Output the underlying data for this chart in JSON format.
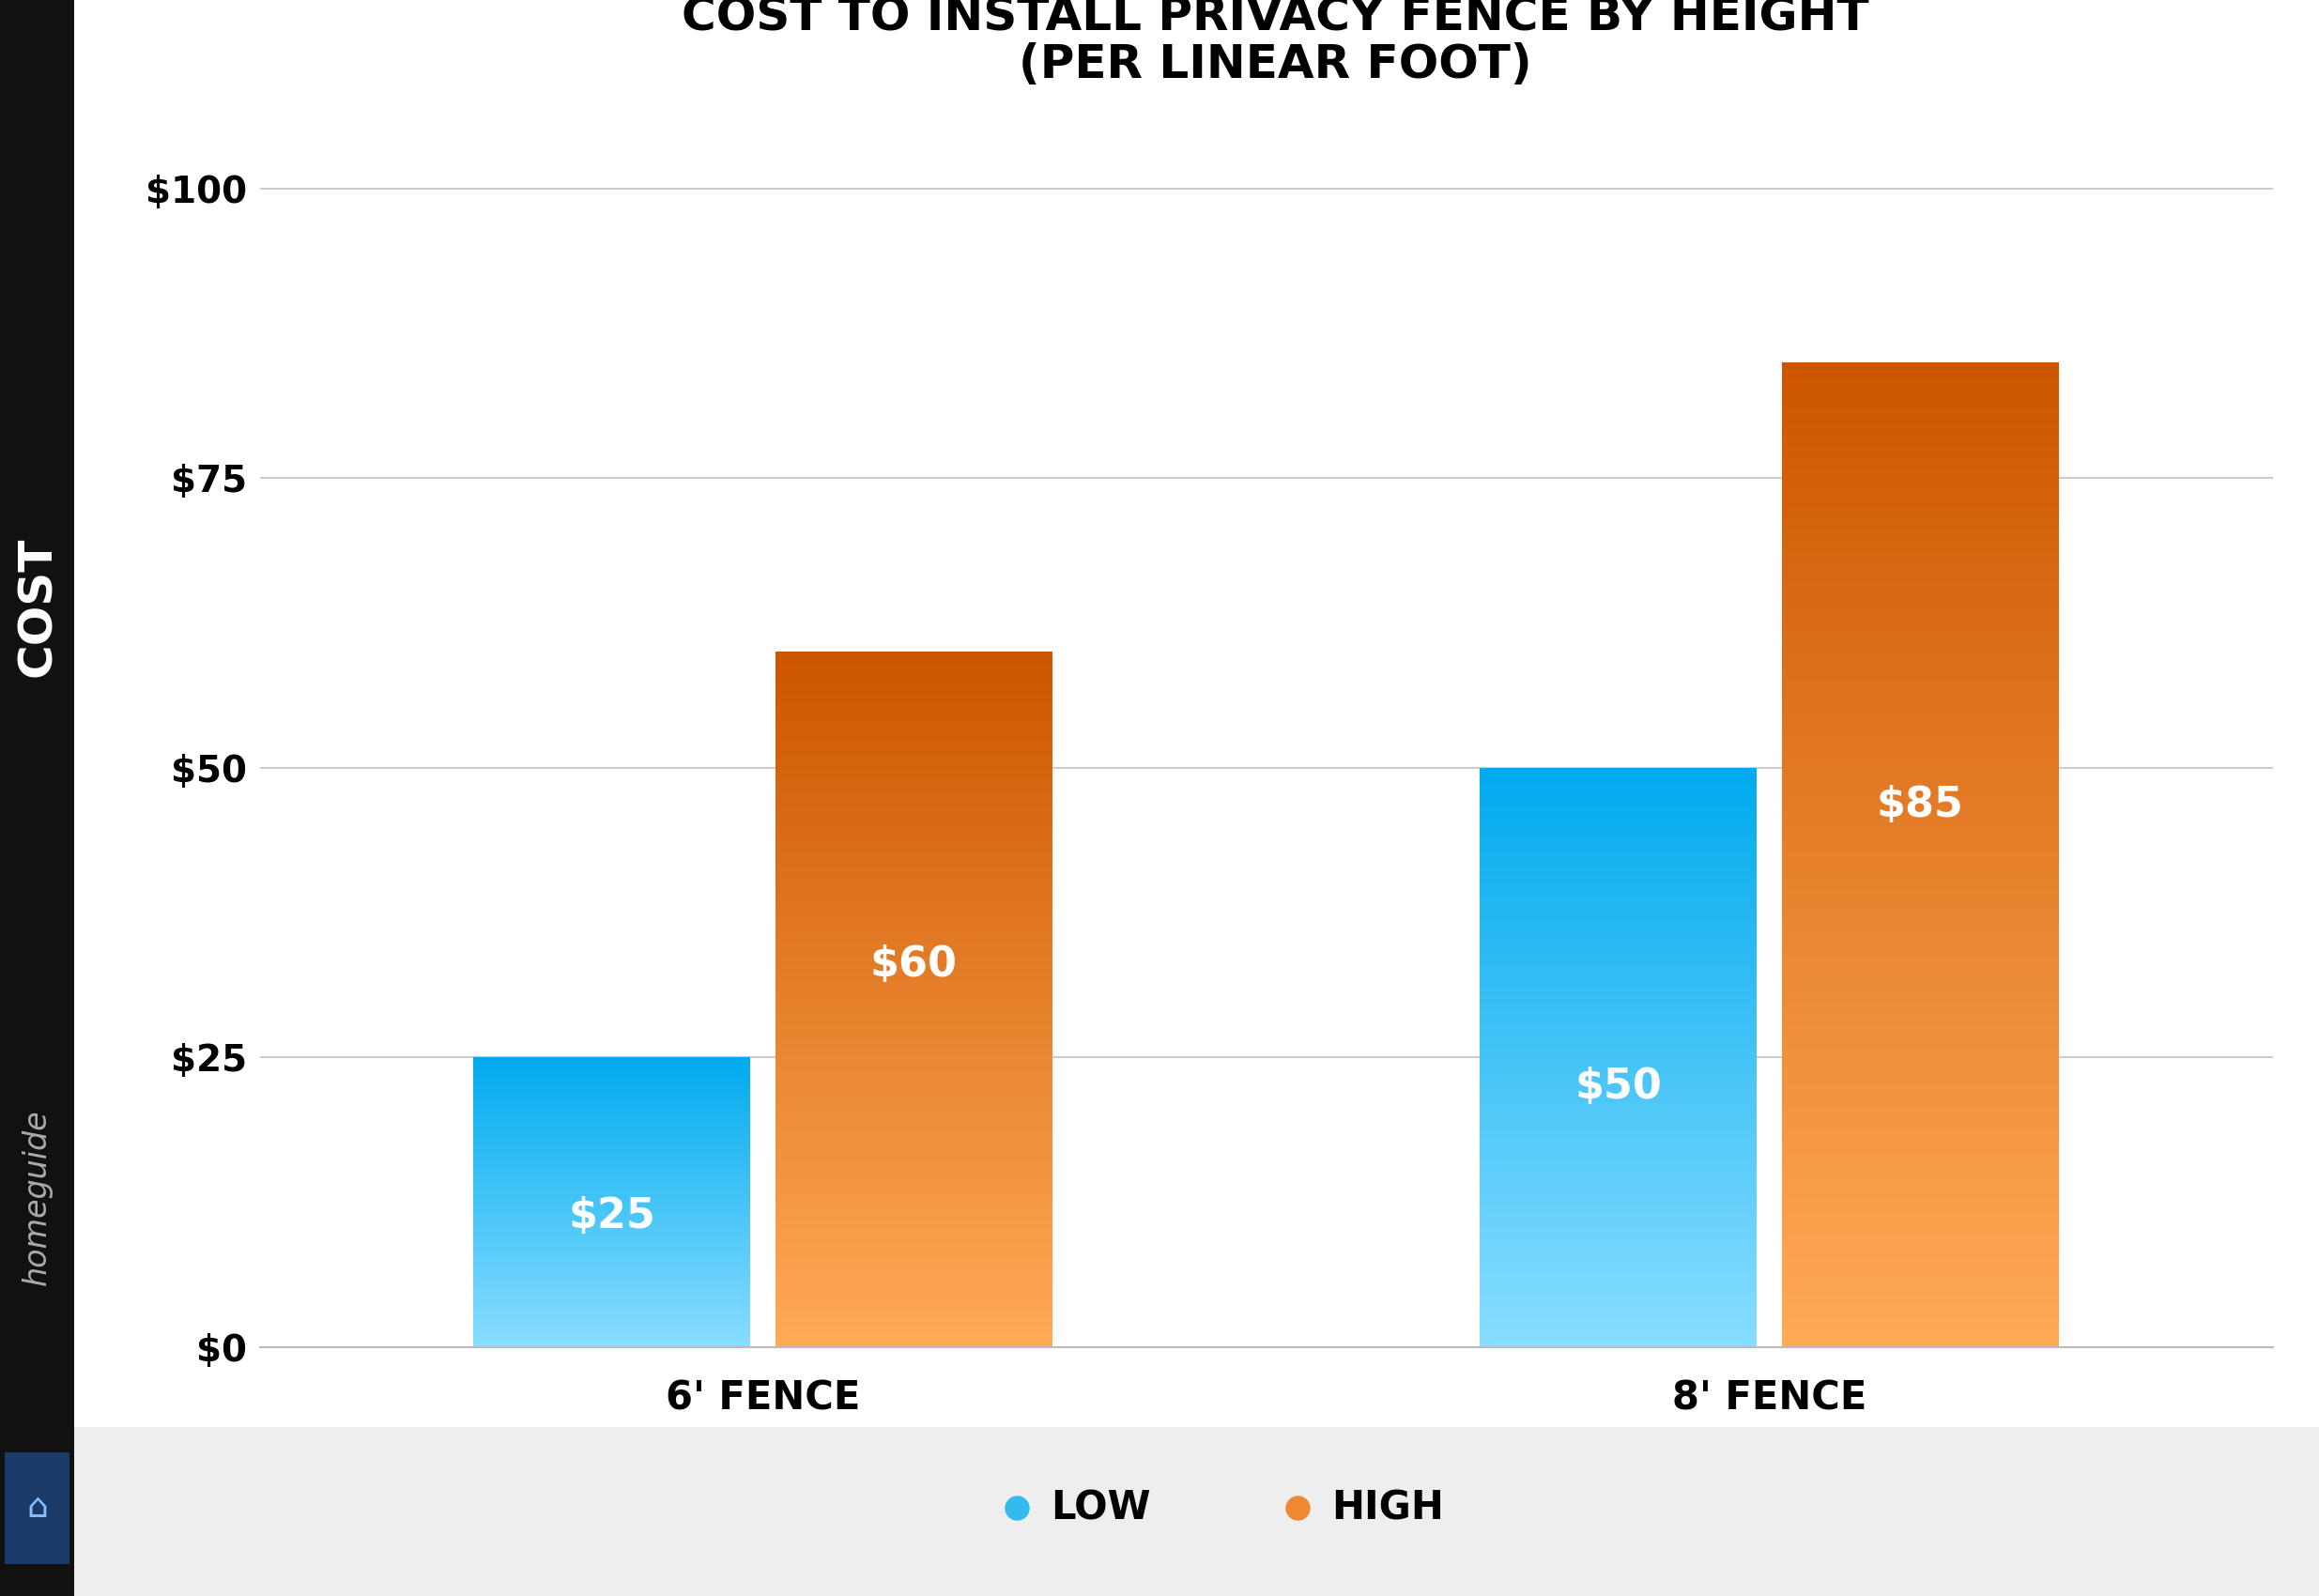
{
  "title_line1": "COST TO INSTALL PRIVACY FENCE BY HEIGHT",
  "title_line2": "(PER LINEAR FOOT)",
  "categories": [
    "6' FENCE",
    "8' FENCE"
  ],
  "low_values": [
    25,
    50
  ],
  "high_values": [
    60,
    85
  ],
  "ylabel": "COST",
  "yticks": [
    0,
    25,
    50,
    75,
    100
  ],
  "ytick_labels": [
    "$0",
    "$25",
    "$50",
    "$75",
    "$100"
  ],
  "blue_top": "#00AAEE",
  "blue_bottom": "#88DDFF",
  "orange_top": "#CC5500",
  "orange_bottom": "#FFAA55",
  "label_color": "#FFFFFF",
  "background_color": "#FFFFFF",
  "left_panel_color": "#111111",
  "bottom_panel_color": "#EEEEEE",
  "legend_low_color": "#33BBEE",
  "legend_high_color": "#EE8833",
  "title_fontsize": 36,
  "bar_label_fontsize": 32,
  "tick_fontsize": 28,
  "cat_label_fontsize": 30,
  "ylabel_fontsize": 32,
  "legend_fontsize": 30,
  "homeguide_fontsize": 24,
  "cost_fontsize": 36
}
